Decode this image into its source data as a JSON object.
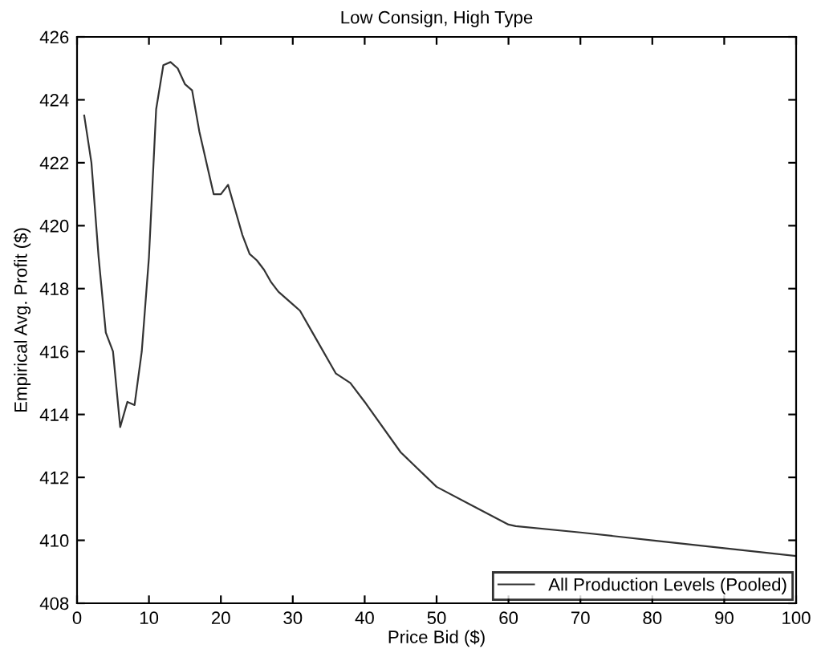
{
  "chart_data": {
    "type": "line",
    "title": "Low Consign, High Type",
    "xlabel": "Price Bid ($)",
    "ylabel": "Empirical Avg. Profit ($)",
    "xlim": [
      0,
      100
    ],
    "xticks": [
      0,
      10,
      20,
      30,
      40,
      50,
      60,
      70,
      80,
      90,
      100
    ],
    "ylim": [
      408,
      426
    ],
    "yticks": [
      408,
      410,
      412,
      414,
      416,
      418,
      420,
      422,
      424,
      426
    ],
    "grid": false,
    "legend": "bottom right",
    "marker": "none",
    "line_style": "solid",
    "series": [
      {
        "name": "All Production Levels (Pooled)",
        "color": "#333333",
        "x": [
          1,
          2,
          3,
          4,
          5,
          6,
          7,
          8,
          9,
          10,
          11,
          12,
          13,
          14,
          15,
          16,
          17,
          18,
          19,
          20,
          21,
          22,
          23,
          24,
          25,
          26,
          27,
          28,
          30,
          31,
          33,
          36,
          38,
          40,
          45,
          50,
          55,
          60,
          61,
          70,
          80,
          90,
          100
        ],
        "values": [
          423.5,
          422,
          419,
          416.6,
          416,
          413.6,
          414.4,
          414.3,
          416,
          419,
          423.7,
          425.1,
          425.2,
          425,
          424.5,
          424.3,
          423,
          422,
          421,
          421,
          421.3,
          420.5,
          419.7,
          419.1,
          418.9,
          418.6,
          418.2,
          417.9,
          417.5,
          417.3,
          416.5,
          415.3,
          415,
          414.4,
          412.8,
          411.7,
          411.1,
          410.5,
          410.45,
          410.25,
          410,
          409.75,
          409.5
        ]
      }
    ]
  }
}
